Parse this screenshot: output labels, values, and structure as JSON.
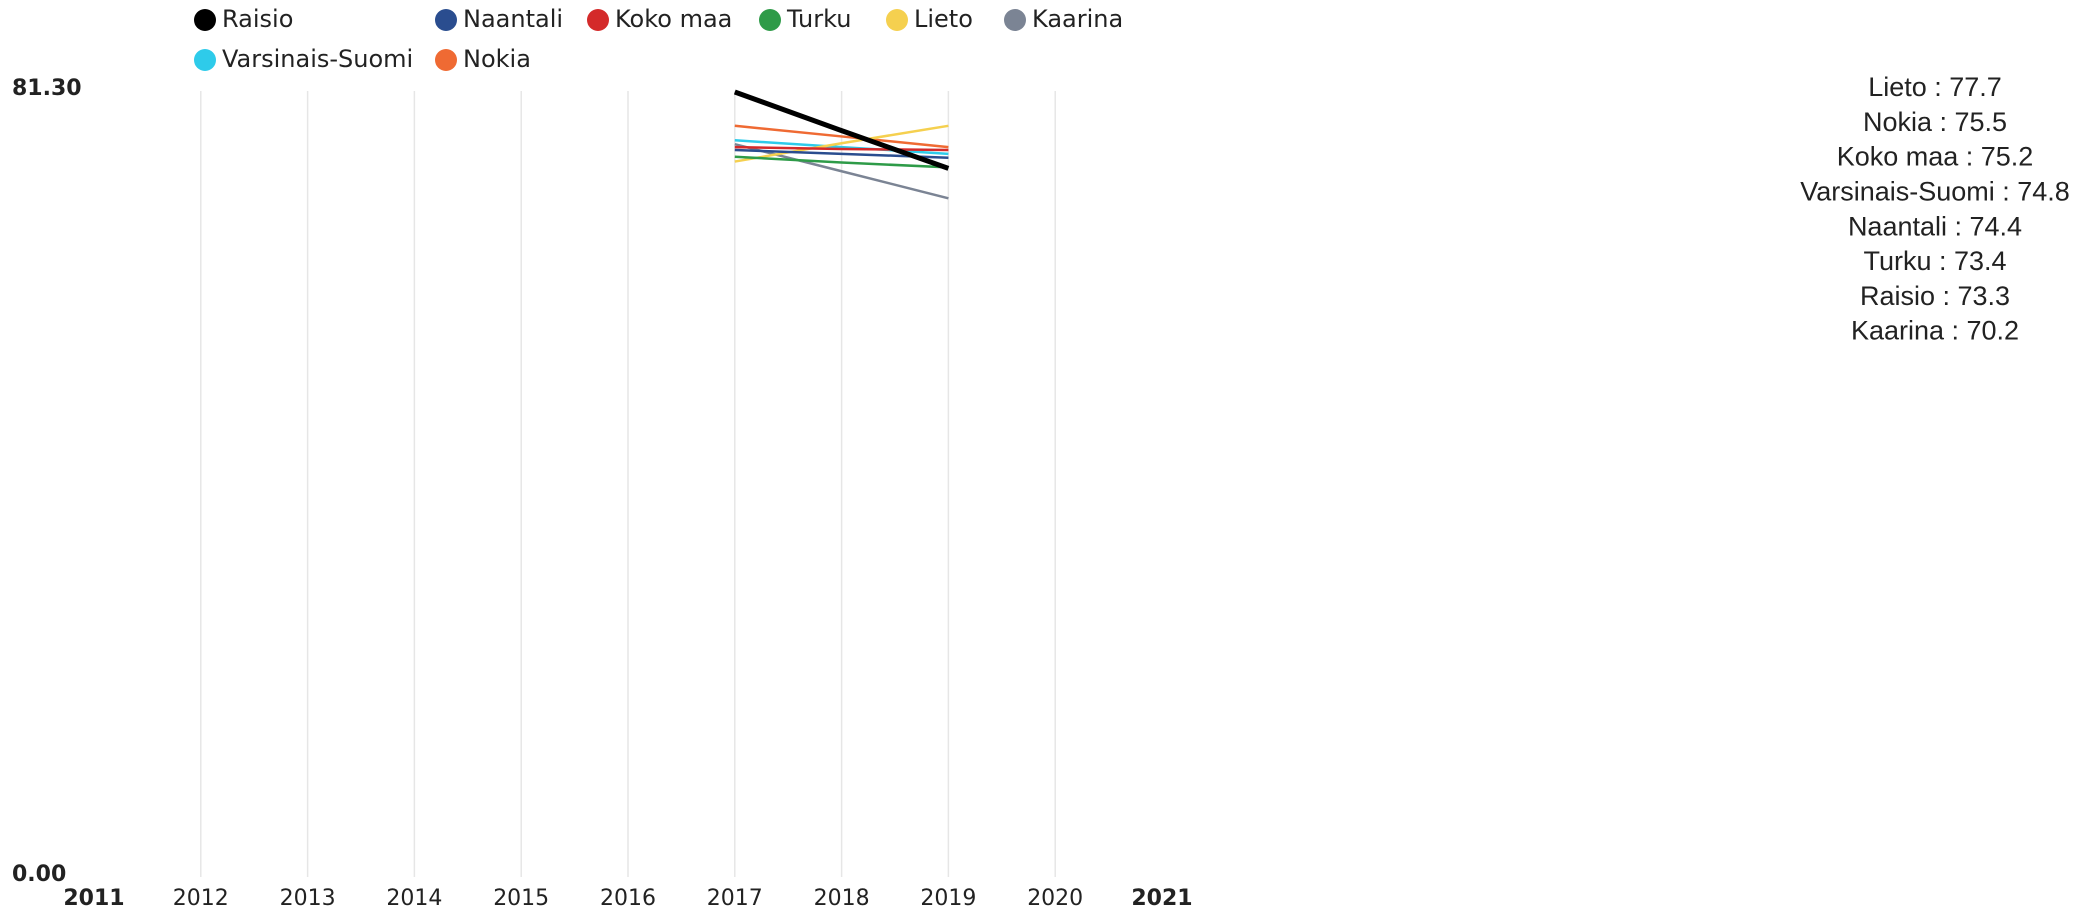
{
  "chart_data": {
    "type": "line",
    "x": [
      2017,
      2018,
      2019
    ],
    "series": [
      {
        "name": "Raisio",
        "color": "#000000",
        "values": [
          81.2,
          77.2,
          73.3
        ]
      },
      {
        "name": "Naantali",
        "color": "#2a4d8f",
        "values": [
          75.2,
          74.8,
          74.4
        ]
      },
      {
        "name": "Koko maa",
        "color": "#d42a2a",
        "values": [
          75.5,
          75.3,
          75.2
        ]
      },
      {
        "name": "Turku",
        "color": "#2e9b48",
        "values": [
          74.5,
          73.9,
          73.4
        ]
      },
      {
        "name": "Lieto",
        "color": "#f5d04f",
        "values": [
          74.0,
          75.9,
          77.7
        ]
      },
      {
        "name": "Kaarina",
        "color": "#7b8494",
        "values": [
          75.8,
          73.0,
          70.2
        ]
      },
      {
        "name": "Varsinais-Suomi",
        "color": "#2ecbea",
        "values": [
          76.2,
          75.5,
          74.8
        ]
      },
      {
        "name": "Nokia",
        "color": "#ef6a33",
        "values": [
          77.7,
          76.6,
          75.5
        ]
      }
    ],
    "xlim": [
      2011,
      2021
    ],
    "xticks": [
      2011,
      2012,
      2013,
      2014,
      2015,
      2016,
      2017,
      2018,
      2019,
      2020,
      2021
    ],
    "ylim": [
      0,
      81.3
    ],
    "yticks": [
      {
        "value": 0,
        "label": "0.00"
      },
      {
        "value": 81.3,
        "label": "81.30"
      }
    ],
    "grid": true,
    "readout": [
      "Lieto : 77.7",
      "Nokia : 75.5",
      "Koko maa : 75.2",
      "Varsinais-Suomi : 74.8",
      "Naantali : 74.4",
      "Turku : 73.4",
      "Raisio : 73.3",
      "Kaarina : 70.2"
    ]
  }
}
